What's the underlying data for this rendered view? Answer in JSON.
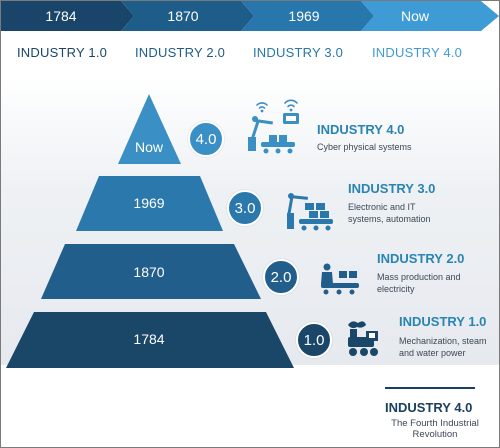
{
  "timeline": {
    "labels": [
      "1784",
      "1870",
      "1969",
      "Now"
    ],
    "colors": [
      "#19456b",
      "#1e5c8a",
      "#2877ac",
      "#3f9bd6"
    ]
  },
  "industry_headers": [
    {
      "label": "INDUSTRY 1.0",
      "color": "#19456b"
    },
    {
      "label": "INDUSTRY 2.0",
      "color": "#1e5c8a"
    },
    {
      "label": "INDUSTRY 3.0",
      "color": "#2877ac"
    },
    {
      "label": "INDUSTRY 4.0",
      "color": "#3f9bd6"
    }
  ],
  "tiers": [
    {
      "year": "Now",
      "version": "4.0",
      "title": "INDUSTRY 4.0",
      "desc": [
        "Cyber physical systems"
      ],
      "color": "#3a8fc4",
      "icon": "robot-arm-wifi-icon"
    },
    {
      "year": "1969",
      "version": "3.0",
      "title": "INDUSTRY 3.0",
      "desc": [
        "Electronic and IT",
        "systems, automation"
      ],
      "color": "#2b78ad",
      "icon": "robot-arm-boxes-icon"
    },
    {
      "year": "1870",
      "version": "2.0",
      "title": "INDUSTRY 2.0",
      "desc": [
        "Mass production and",
        "electricity"
      ],
      "color": "#225e8b",
      "icon": "worker-conveyor-icon"
    },
    {
      "year": "1784",
      "version": "1.0",
      "title": "INDUSTRY 1.0",
      "desc": [
        "Mechanization, steam",
        "and water power"
      ],
      "color": "#1a4668",
      "icon": "steam-engine-icon"
    }
  ],
  "footer": {
    "title": "INDUSTRY 4.0",
    "subtitle_line1": "The Fourth Industrial",
    "subtitle_line2": "Revolution"
  }
}
